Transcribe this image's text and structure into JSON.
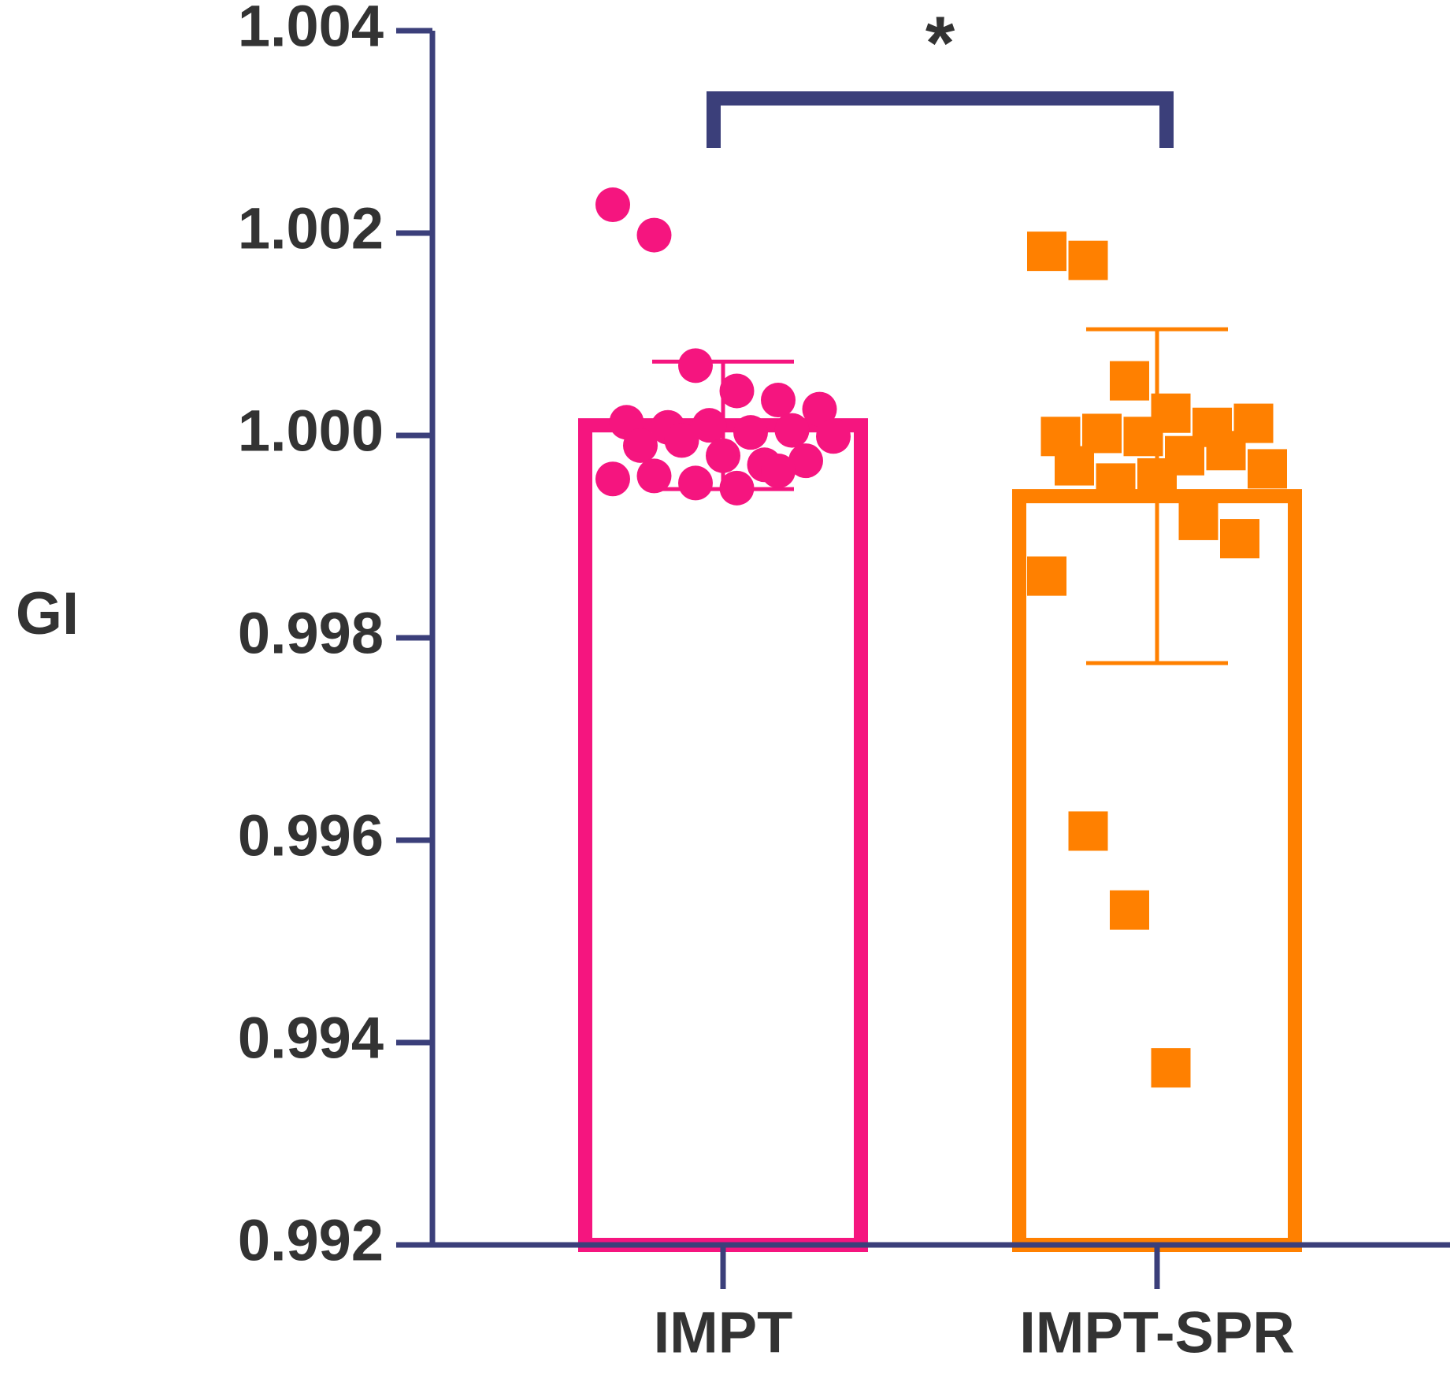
{
  "chart_data": {
    "type": "bar",
    "y_label": "GI",
    "annotation": "*",
    "categories": [
      "IMPT",
      "IMPT-SPR"
    ],
    "values": [
      1.0001,
      0.9994
    ],
    "errors": [
      0.00063,
      0.00165
    ],
    "colors": [
      "#f5157f",
      "#ff8000"
    ],
    "markers": [
      "circle",
      "square"
    ],
    "points": [
      [
        1.00228,
        1.00198,
        1.00069,
        1.00044,
        1.00035,
        1.00026,
        1.00013,
        1.00008,
        1.0001,
        1.00003,
        1.00005,
        0.99999,
        0.9999,
        0.99995,
        0.9998,
        0.99971,
        0.99975,
        0.99957,
        0.9996,
        0.99953,
        0.99948,
        0.99965
      ],
      [
        1.00182,
        1.00173,
        1.00054,
        1.00022,
        1.00008,
        1.00012,
        0.99999,
        1.00002,
        0.99999,
        0.9998,
        0.99985,
        0.99967,
        0.9997,
        0.99953,
        0.99958,
        0.99916,
        0.99898,
        0.99861,
        0.99609,
        0.99531,
        0.99375
      ]
    ],
    "axis_color": "#3b3f7a",
    "ylim": [
      0.992,
      1.004
    ],
    "yticks": [
      0.992,
      0.994,
      0.996,
      0.998,
      {
        "value": 1.0,
        "label": "1.000"
      },
      1.002,
      1.004
    ]
  }
}
